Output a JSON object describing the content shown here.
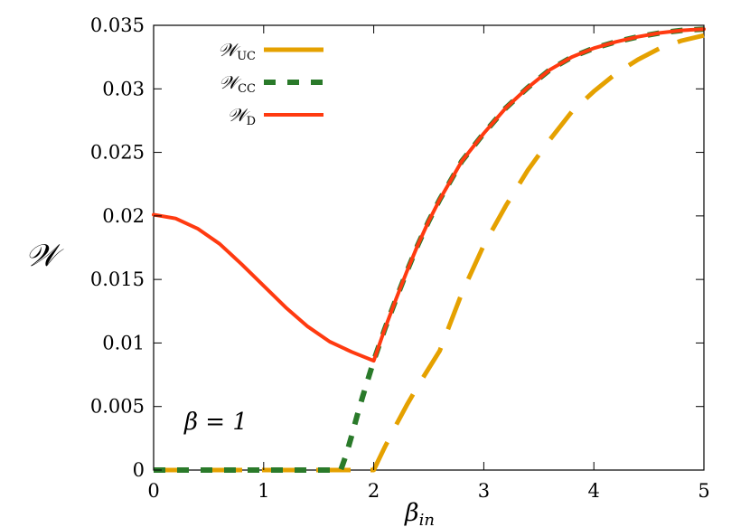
{
  "chart_data": {
    "type": "line",
    "xlabel": "β",
    "xlabel_sub": "in",
    "ylabel": "𝒲",
    "xlim": [
      0,
      5
    ],
    "ylim": [
      0,
      0.035
    ],
    "xticks": [
      "0",
      "1",
      "2",
      "3",
      "4",
      "5"
    ],
    "yticks": [
      "0",
      "0.005",
      "0.01",
      "0.015",
      "0.02",
      "0.025",
      "0.03",
      "0.035"
    ],
    "annotation": "β = 1",
    "grid": false,
    "legend_position": "top-left",
    "series": [
      {
        "name": "𝒲",
        "sub": "UC",
        "color": "#e5a100",
        "style": "long-dash",
        "x": [
          0,
          0.5,
          1,
          1.5,
          2.0,
          2.05,
          2.1,
          2.2,
          2.3,
          2.4,
          2.5,
          2.6,
          2.8,
          3.0,
          3.2,
          3.4,
          3.6,
          3.8,
          4.0,
          4.2,
          4.4,
          4.6,
          4.8,
          5.0
        ],
        "y": [
          0,
          0,
          0,
          0,
          0,
          0.0009,
          0.0018,
          0.0035,
          0.0051,
          0.0066,
          0.008,
          0.0094,
          0.0139,
          0.0177,
          0.0208,
          0.0236,
          0.026,
          0.0282,
          0.0298,
          0.0312,
          0.0323,
          0.0332,
          0.0338,
          0.0342
        ]
      },
      {
        "name": "𝒲",
        "sub": "CC",
        "color": "#2a7a2a",
        "style": "dash",
        "x": [
          0,
          0.5,
          1,
          1.5,
          1.7,
          1.75,
          1.8,
          1.85,
          1.9,
          1.95,
          2.0,
          2.1,
          2.2,
          2.3,
          2.4,
          2.5,
          2.6,
          2.8,
          3.0,
          3.2,
          3.4,
          3.6,
          3.8,
          4.0,
          4.2,
          4.4,
          4.6,
          4.8,
          5.0
        ],
        "y": [
          0,
          0,
          0,
          0,
          0,
          0.0012,
          0.0027,
          0.0043,
          0.0058,
          0.0072,
          0.0086,
          0.0111,
          0.0134,
          0.0156,
          0.0177,
          0.0196,
          0.0213,
          0.0243,
          0.0265,
          0.0285,
          0.0301,
          0.0315,
          0.0325,
          0.0332,
          0.0337,
          0.0341,
          0.0344,
          0.0346,
          0.0347
        ]
      },
      {
        "name": "𝒲",
        "sub": "D",
        "color": "#ff3a10",
        "style": "solid",
        "x": [
          0,
          0.2,
          0.4,
          0.6,
          0.8,
          1.0,
          1.2,
          1.4,
          1.6,
          1.8,
          2.0,
          2.1,
          2.2,
          2.3,
          2.4,
          2.5,
          2.6,
          2.8,
          3.0,
          3.2,
          3.4,
          3.6,
          3.8,
          4.0,
          4.2,
          4.4,
          4.6,
          4.8,
          5.0
        ],
        "y": [
          0.0201,
          0.0198,
          0.019,
          0.0178,
          0.0162,
          0.0145,
          0.0128,
          0.0113,
          0.0101,
          0.0093,
          0.0086,
          0.0111,
          0.0134,
          0.0156,
          0.0177,
          0.0196,
          0.0213,
          0.0243,
          0.0265,
          0.0285,
          0.0301,
          0.0315,
          0.0325,
          0.0332,
          0.0337,
          0.0341,
          0.0344,
          0.0346,
          0.0347
        ]
      }
    ]
  }
}
